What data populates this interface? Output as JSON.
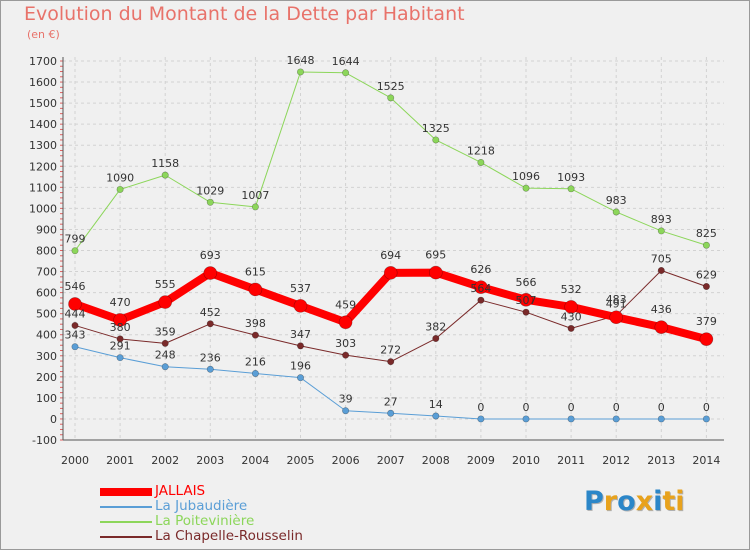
{
  "title": "Evolution du Montant de la Dette par Habitant",
  "unit": "(en €)",
  "logo": {
    "text": "Proxiti",
    "colors": [
      "#2b86c8",
      "#e8a21c",
      "#2b86c8",
      "#e8a21c",
      "#2b86c8",
      "#e8a21c",
      "#e8a21c"
    ]
  },
  "chart_data": {
    "type": "line",
    "title": "Evolution du Montant de la Dette par Habitant",
    "ylabel": "(en €)",
    "xlabel": "",
    "x": [
      2000,
      2001,
      2002,
      2003,
      2004,
      2005,
      2006,
      2007,
      2008,
      2009,
      2010,
      2011,
      2012,
      2013,
      2014
    ],
    "ylim": [
      -100,
      1700
    ],
    "yticks": [
      -100,
      0,
      100,
      200,
      300,
      400,
      500,
      600,
      700,
      800,
      900,
      1000,
      1100,
      1200,
      1300,
      1400,
      1500,
      1600,
      1700
    ],
    "grid": true,
    "legend": "bottom-left",
    "series": [
      {
        "name": "La Poitevinière",
        "color": "#8cd65a",
        "width": 1,
        "radius": 3.2,
        "values": [
          799,
          1090,
          1158,
          1029,
          1007,
          1648,
          1644,
          1525,
          1325,
          1218,
          1096,
          1093,
          983,
          893,
          825
        ]
      },
      {
        "name": "La Jubaudière",
        "color": "#5a9ed6",
        "width": 1,
        "radius": 3.2,
        "values": [
          343,
          291,
          248,
          236,
          216,
          196,
          39,
          27,
          14,
          0,
          0,
          0,
          0,
          0,
          0
        ]
      },
      {
        "name": "La Chapelle-Rousselin",
        "color": "#7a2a2a",
        "width": 1,
        "radius": 3.2,
        "values": [
          444,
          380,
          359,
          452,
          398,
          347,
          303,
          272,
          382,
          564,
          507,
          430,
          491,
          705,
          629
        ]
      },
      {
        "name": "JALLAIS",
        "color": "#ff0000",
        "width": 8,
        "radius": 6.5,
        "values": [
          546,
          470,
          555,
          693,
          615,
          537,
          459,
          694,
          695,
          626,
          566,
          532,
          483,
          436,
          379
        ]
      }
    ],
    "data_labels": [
      [
        "799",
        "1090",
        "1158",
        "1029",
        "1007",
        "1648",
        "1644",
        "1525",
        "1325",
        "1218",
        "1096",
        "1093",
        "983",
        "893",
        "825"
      ],
      [
        "343",
        "291",
        "248",
        "236",
        "216",
        "196",
        "39",
        "27",
        "14",
        "0",
        "0",
        "0",
        "0",
        "0",
        "0"
      ],
      [
        "444",
        "380",
        "359",
        "452",
        "398",
        "347",
        "303",
        "272",
        "382",
        "564",
        "507",
        "430",
        "491",
        "705",
        "629"
      ],
      [
        "546",
        "470",
        "555",
        "693",
        "615",
        "537",
        "459",
        "694",
        "695",
        "626",
        "566",
        "532",
        "483",
        "436",
        "379"
      ]
    ]
  },
  "legend_items": [
    {
      "name": "JALLAIS",
      "color": "#ff0000",
      "width": 8
    },
    {
      "name": "La Jubaudière",
      "color": "#5a9ed6",
      "width": 2
    },
    {
      "name": "La Poitevinière",
      "color": "#8cd65a",
      "width": 2
    },
    {
      "name": "La Chapelle-Rousselin",
      "color": "#7a2a2a",
      "width": 2
    }
  ]
}
